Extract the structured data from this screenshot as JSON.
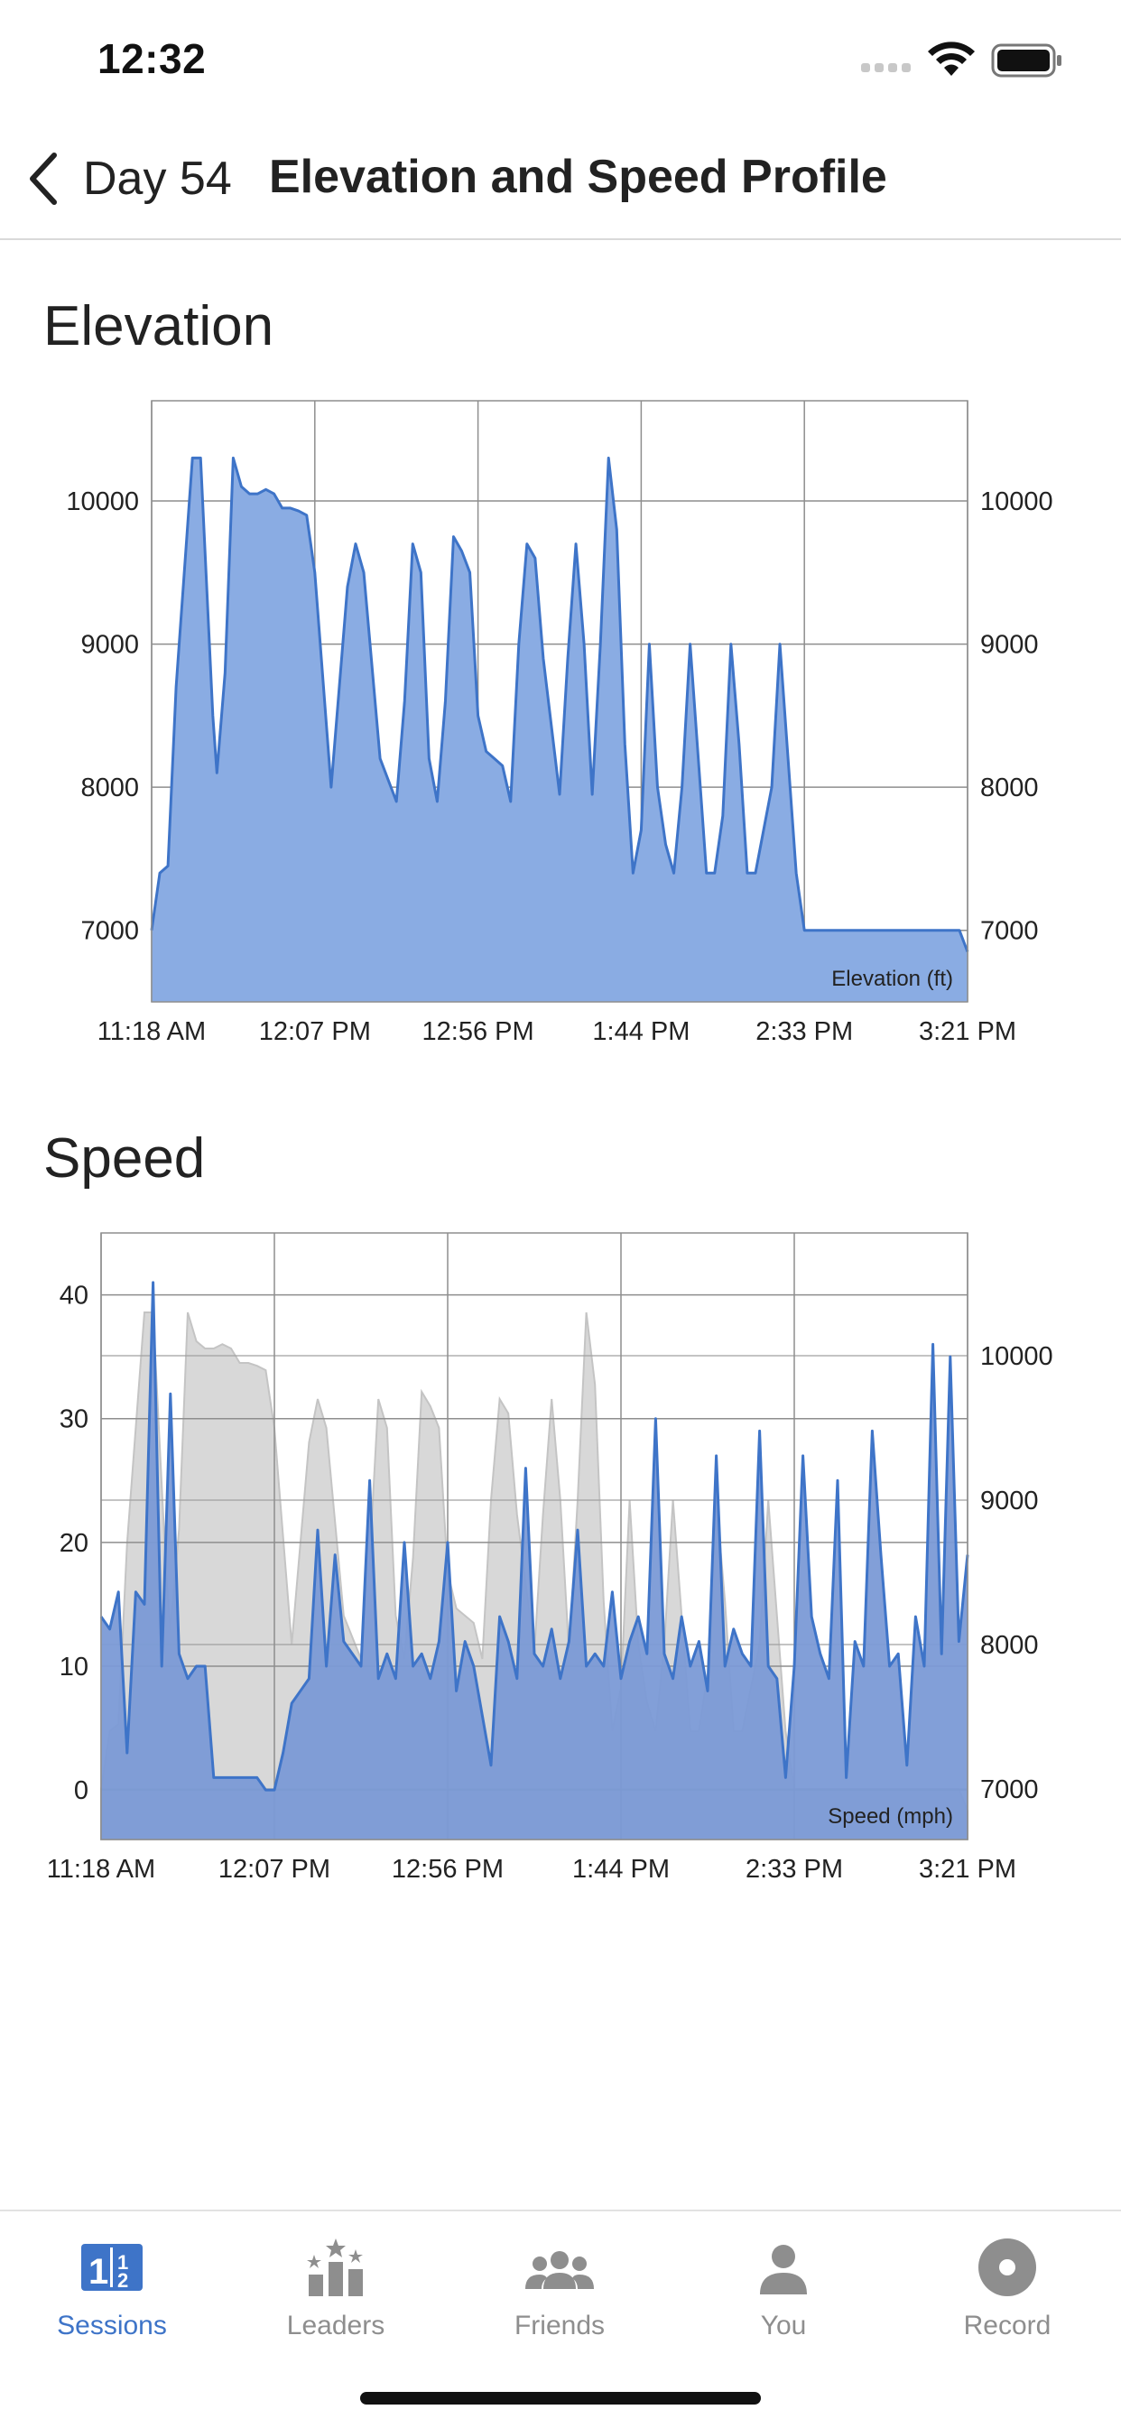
{
  "status_bar": {
    "time": "12:32"
  },
  "nav": {
    "back_label": "Day 54",
    "title": "Elevation and Speed Profile"
  },
  "colors": {
    "accent": "#3e74c8",
    "fill": "#8aacE3",
    "speed_fill": "#7b9ad6",
    "elev_shadow": "#d8d8d8"
  },
  "icons": {
    "back": "chevron-left-icon",
    "signal": "signal-icon",
    "wifi": "wifi-icon",
    "battery": "battery-icon"
  },
  "chart_data": [
    {
      "type": "area",
      "title": "Elevation",
      "inner_label": "Elevation (ft)",
      "x_tick_labels": [
        "11:18 AM",
        "12:07 PM",
        "12:56 PM",
        "1:44 PM",
        "2:33 PM",
        "3:21 PM"
      ],
      "ylim": [
        6500,
        10700
      ],
      "y_ticks": [
        7000,
        8000,
        9000,
        10000
      ],
      "y_tick_labels": [
        "7000",
        "8000",
        "9000",
        "10000"
      ],
      "grid": true,
      "series": [
        {
          "x": [
            0,
            0.01,
            0.02,
            0.03,
            0.05,
            0.06,
            0.07,
            0.075,
            0.08,
            0.09,
            0.1,
            0.11,
            0.12,
            0.13,
            0.14,
            0.15,
            0.16,
            0.17,
            0.18,
            0.19,
            0.2,
            0.22,
            0.24,
            0.25,
            0.26,
            0.28,
            0.3,
            0.31,
            0.32,
            0.33,
            0.34,
            0.35,
            0.36,
            0.37,
            0.38,
            0.39,
            0.4,
            0.41,
            0.42,
            0.43,
            0.44,
            0.45,
            0.46,
            0.47,
            0.48,
            0.5,
            0.51,
            0.52,
            0.53,
            0.54,
            0.55,
            0.56,
            0.57,
            0.58,
            0.59,
            0.6,
            0.61,
            0.62,
            0.63,
            0.64,
            0.65,
            0.66,
            0.67,
            0.68,
            0.69,
            0.7,
            0.71,
            0.72,
            0.73,
            0.74,
            0.75,
            0.76,
            0.77,
            0.78,
            0.79,
            0.8,
            0.81,
            0.82,
            0.83,
            0.84,
            0.85,
            0.86,
            0.87,
            0.88,
            0.89,
            0.9,
            0.91,
            0.92,
            0.93,
            0.94,
            0.95,
            0.96,
            0.97,
            0.98,
            0.99,
            1
          ],
          "y": [
            7000,
            7400,
            7450,
            8700,
            10300,
            10300,
            9100,
            8500,
            8100,
            8800,
            10300,
            10100,
            10050,
            10050,
            10080,
            10050,
            9950,
            9950,
            9930,
            9900,
            9500,
            8000,
            9400,
            9700,
            9500,
            8200,
            7900,
            8600,
            9700,
            9500,
            8200,
            7900,
            8600,
            9750,
            9650,
            9500,
            8500,
            8250,
            8200,
            8150,
            7900,
            9000,
            9700,
            9600,
            8900,
            7950,
            8900,
            9700,
            9000,
            7950,
            9000,
            10300,
            9800,
            8300,
            7400,
            7700,
            9000,
            8000,
            7600,
            7400,
            8000,
            9000,
            8200,
            7400,
            7400,
            7800,
            9000,
            8300,
            7400,
            7400,
            7700,
            8000,
            9000,
            8200,
            7400,
            7000,
            7000,
            7000,
            7000,
            7000,
            7000,
            7000,
            7000,
            7000,
            7000,
            7000,
            7000,
            7000,
            7000,
            7000,
            7000,
            7000,
            7000,
            7000,
            7000,
            6850
          ]
        }
      ]
    },
    {
      "type": "area",
      "title": "Speed",
      "inner_label": "Speed (mph)",
      "x_tick_labels": [
        "11:18 AM",
        "12:07 PM",
        "12:56 PM",
        "1:44 PM",
        "2:33 PM",
        "3:21 PM"
      ],
      "ylim": [
        -4,
        45
      ],
      "y_ticks": [
        0,
        10,
        20,
        30,
        40
      ],
      "y_tick_labels": [
        "0",
        "10",
        "20",
        "30",
        "40"
      ],
      "y2_ticks": [
        7000,
        8000,
        9000,
        10000
      ],
      "y2_tick_labels": [
        "7000",
        "8000",
        "9000",
        "10000"
      ],
      "y2lim": [
        6650,
        10850
      ],
      "grid": true,
      "series": [
        {
          "name": "",
          "x": [
            0,
            0.01,
            0.02,
            0.03,
            0.04,
            0.05,
            0.06,
            0.07,
            0.08,
            0.09,
            0.1,
            0.11,
            0.12,
            0.13,
            0.14,
            0.15,
            0.16,
            0.17,
            0.18,
            0.19,
            0.2,
            0.21,
            0.22,
            0.23,
            0.24,
            0.25,
            0.26,
            0.27,
            0.28,
            0.29,
            0.3,
            0.31,
            0.32,
            0.33,
            0.34,
            0.35,
            0.36,
            0.37,
            0.38,
            0.39,
            0.4,
            0.41,
            0.42,
            0.43,
            0.44,
            0.45,
            0.46,
            0.47,
            0.48,
            0.49,
            0.5,
            0.51,
            0.52,
            0.53,
            0.54,
            0.55,
            0.56,
            0.57,
            0.58,
            0.59,
            0.6,
            0.61,
            0.62,
            0.63,
            0.64,
            0.65,
            0.66,
            0.67,
            0.68,
            0.69,
            0.7,
            0.71,
            0.72,
            0.73,
            0.74,
            0.75,
            0.76,
            0.77,
            0.78,
            0.79,
            0.8,
            0.81,
            0.82,
            0.83,
            0.84,
            0.85,
            0.86,
            0.87,
            0.88,
            0.89,
            0.9,
            0.91,
            0.92,
            0.93,
            0.94,
            0.95,
            0.96,
            0.97,
            0.98,
            0.99,
            1
          ],
          "y": [
            14,
            13,
            16,
            3,
            16,
            15,
            41,
            10,
            32,
            11,
            9,
            10,
            10,
            1,
            1,
            1,
            1,
            1,
            1,
            0,
            0,
            3,
            7,
            8,
            9,
            21,
            10,
            19,
            12,
            11,
            10,
            25,
            9,
            11,
            9,
            20,
            10,
            11,
            9,
            12,
            20,
            8,
            12,
            10,
            6,
            2,
            14,
            12,
            9,
            26,
            11,
            10,
            13,
            9,
            12,
            21,
            10,
            11,
            10,
            16,
            9,
            12,
            14,
            11,
            30,
            11,
            9,
            14,
            10,
            12,
            8,
            27,
            10,
            13,
            11,
            10,
            29,
            10,
            9,
            1,
            10,
            27,
            14,
            11,
            9,
            25,
            1,
            12,
            10,
            29,
            19,
            10,
            11,
            2,
            14,
            10,
            36,
            11,
            35,
            12,
            19
          ]
        }
      ]
    }
  ],
  "tabs": [
    {
      "label": "Sessions",
      "icon": "sessions-icon",
      "active": true
    },
    {
      "label": "Leaders",
      "icon": "leaders-icon",
      "active": false
    },
    {
      "label": "Friends",
      "icon": "friends-icon",
      "active": false
    },
    {
      "label": "You",
      "icon": "you-icon",
      "active": false
    },
    {
      "label": "Record",
      "icon": "record-icon",
      "active": false
    }
  ]
}
